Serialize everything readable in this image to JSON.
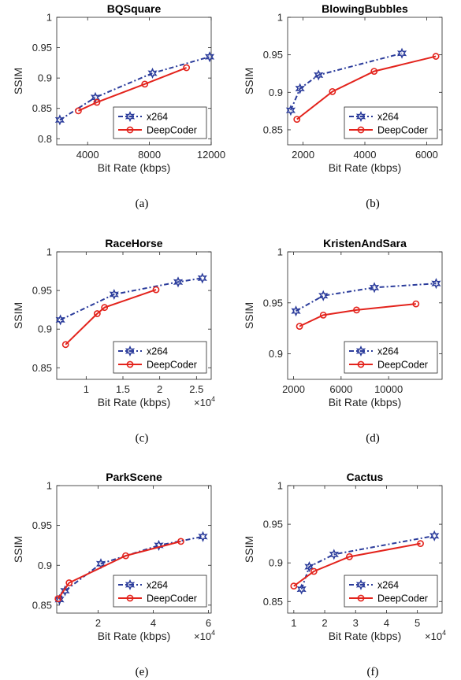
{
  "chart_data": [
    {
      "type": "line",
      "title": "BQSquare",
      "xlabel": "Bit Rate (kbps)",
      "ylabel": "SSIM",
      "x_multiplier": "",
      "xlim": [
        2000,
        12000
      ],
      "ylim": [
        0.79,
        1.0
      ],
      "xticks": [
        {
          "v": 4000,
          "label": "4000"
        },
        {
          "v": 8000,
          "label": "8000"
        },
        {
          "v": 12000,
          "label": "12000"
        }
      ],
      "yticks": [
        {
          "v": 0.8,
          "label": "0.8"
        },
        {
          "v": 0.85,
          "label": "0.85"
        },
        {
          "v": 0.9,
          "label": "0.9"
        },
        {
          "v": 0.95,
          "label": "0.95"
        },
        {
          "v": 1.0,
          "label": "1"
        }
      ],
      "legend_position": "lower-right",
      "caption": "(a)",
      "series": [
        {
          "name": "x264",
          "x": [
            2200,
            4500,
            8200,
            11900
          ],
          "y": [
            0.831,
            0.868,
            0.908,
            0.935
          ]
        },
        {
          "name": "DeepCoder",
          "x": [
            3400,
            4600,
            7700,
            10400
          ],
          "y": [
            0.846,
            0.86,
            0.89,
            0.917
          ]
        }
      ]
    },
    {
      "type": "line",
      "title": "BlowingBubbles",
      "xlabel": "Bit Rate (kbps)",
      "ylabel": "SSIM",
      "x_multiplier": "",
      "xlim": [
        1500,
        6500
      ],
      "ylim": [
        0.83,
        1.0
      ],
      "xticks": [
        {
          "v": 2000,
          "label": "2000"
        },
        {
          "v": 4000,
          "label": "4000"
        },
        {
          "v": 6000,
          "label": "6000"
        }
      ],
      "yticks": [
        {
          "v": 0.85,
          "label": "0.85"
        },
        {
          "v": 0.9,
          "label": "0.9"
        },
        {
          "v": 0.95,
          "label": "0.95"
        },
        {
          "v": 1.0,
          "label": "1"
        }
      ],
      "legend_position": "lower-right",
      "caption": "(b)",
      "series": [
        {
          "name": "x264",
          "x": [
            1600,
            1900,
            2500,
            5200
          ],
          "y": [
            0.876,
            0.905,
            0.923,
            0.952
          ]
        },
        {
          "name": "DeepCoder",
          "x": [
            1800,
            2950,
            4300,
            6300
          ],
          "y": [
            0.864,
            0.901,
            0.928,
            0.948
          ]
        }
      ]
    },
    {
      "type": "line",
      "title": "RaceHorse",
      "xlabel": "Bit Rate (kbps)",
      "ylabel": "SSIM",
      "x_multiplier": "×10^4",
      "xlim": [
        0.6,
        2.7
      ],
      "ylim": [
        0.835,
        1.0
      ],
      "xticks": [
        {
          "v": 1.0,
          "label": "1"
        },
        {
          "v": 1.5,
          "label": "1.5"
        },
        {
          "v": 2.0,
          "label": "2"
        },
        {
          "v": 2.5,
          "label": "2.5"
        }
      ],
      "yticks": [
        {
          "v": 0.85,
          "label": "0.85"
        },
        {
          "v": 0.9,
          "label": "0.9"
        },
        {
          "v": 0.95,
          "label": "0.95"
        },
        {
          "v": 1.0,
          "label": "1"
        }
      ],
      "legend_position": "lower-right",
      "caption": "(c)",
      "series": [
        {
          "name": "x264",
          "x": [
            0.65,
            1.38,
            2.25,
            2.58
          ],
          "y": [
            0.912,
            0.945,
            0.961,
            0.966
          ]
        },
        {
          "name": "DeepCoder",
          "x": [
            0.72,
            1.15,
            1.25,
            1.95
          ],
          "y": [
            0.88,
            0.92,
            0.928,
            0.951
          ]
        }
      ]
    },
    {
      "type": "line",
      "title": "KristenAndSara",
      "xlabel": "Bit Rate (kbps)",
      "ylabel": "SSIM",
      "x_multiplier": "",
      "xlim": [
        1500,
        14500
      ],
      "ylim": [
        0.875,
        1.0
      ],
      "xticks": [
        {
          "v": 2000,
          "label": "2000"
        },
        {
          "v": 6000,
          "label": "6000"
        },
        {
          "v": 10000,
          "label": "10000"
        }
      ],
      "yticks": [
        {
          "v": 0.9,
          "label": "0.9"
        },
        {
          "v": 0.95,
          "label": "0.95"
        },
        {
          "v": 1.0,
          "label": "1"
        }
      ],
      "legend_position": "lower-right",
      "caption": "(d)",
      "series": [
        {
          "name": "x264",
          "x": [
            2200,
            4500,
            8800,
            14000
          ],
          "y": [
            0.942,
            0.957,
            0.965,
            0.969
          ]
        },
        {
          "name": "DeepCoder",
          "x": [
            2500,
            4500,
            7300,
            12300
          ],
          "y": [
            0.927,
            0.938,
            0.943,
            0.949
          ]
        }
      ]
    },
    {
      "type": "line",
      "title": "ParkScene",
      "xlabel": "Bit Rate (kbps)",
      "ylabel": "SSIM",
      "x_multiplier": "×10^4",
      "xlim": [
        0.5,
        6.1
      ],
      "ylim": [
        0.84,
        1.0
      ],
      "xticks": [
        {
          "v": 2,
          "label": "2"
        },
        {
          "v": 4,
          "label": "4"
        },
        {
          "v": 6,
          "label": "6"
        }
      ],
      "yticks": [
        {
          "v": 0.85,
          "label": "0.85"
        },
        {
          "v": 0.9,
          "label": "0.9"
        },
        {
          "v": 0.95,
          "label": "0.95"
        },
        {
          "v": 1.0,
          "label": "1"
        }
      ],
      "legend_position": "lower-right",
      "caption": "(e)",
      "series": [
        {
          "name": "x264",
          "x": [
            0.6,
            0.8,
            2.1,
            4.2,
            5.8
          ],
          "y": [
            0.857,
            0.868,
            0.902,
            0.925,
            0.936
          ]
        },
        {
          "name": "DeepCoder",
          "x": [
            0.55,
            0.95,
            3.0,
            5.0
          ],
          "y": [
            0.858,
            0.878,
            0.912,
            0.93
          ]
        }
      ]
    },
    {
      "type": "line",
      "title": "Cactus",
      "xlabel": "Bit Rate (kbps)",
      "ylabel": "SSIM",
      "x_multiplier": "×10^4",
      "xlim": [
        0.8,
        5.8
      ],
      "ylim": [
        0.835,
        1.0
      ],
      "xticks": [
        {
          "v": 1,
          "label": "1"
        },
        {
          "v": 2,
          "label": "2"
        },
        {
          "v": 3,
          "label": "3"
        },
        {
          "v": 4,
          "label": "4"
        },
        {
          "v": 5,
          "label": "5"
        }
      ],
      "yticks": [
        {
          "v": 0.85,
          "label": "0.85"
        },
        {
          "v": 0.9,
          "label": "0.9"
        },
        {
          "v": 0.95,
          "label": "0.95"
        },
        {
          "v": 1.0,
          "label": "1"
        }
      ],
      "legend_position": "lower-right",
      "caption": "(f)",
      "series": [
        {
          "name": "x264",
          "x": [
            1.25,
            1.5,
            2.3,
            5.55
          ],
          "y": [
            0.866,
            0.895,
            0.911,
            0.935
          ]
        },
        {
          "name": "DeepCoder",
          "x": [
            1.0,
            1.65,
            2.8,
            5.1
          ],
          "y": [
            0.87,
            0.889,
            0.908,
            0.925
          ]
        }
      ]
    }
  ],
  "colors": {
    "x264": "#2b3c9b",
    "DeepCoder": "#e3231c",
    "axis": "#262626"
  },
  "icons": {
    "x264_marker": "hexagram-star-marker",
    "DeepCoder_marker": "open-circle-marker"
  }
}
